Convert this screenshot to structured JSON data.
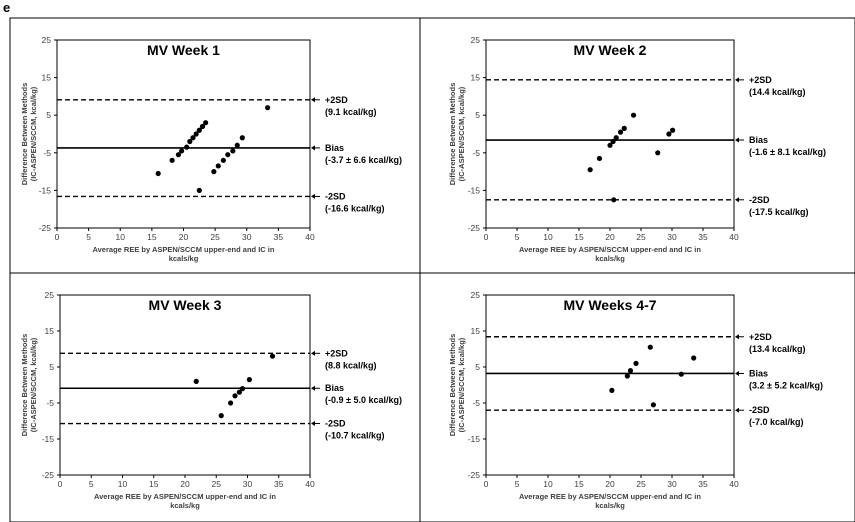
{
  "figure": {
    "panel_letter": "e"
  },
  "chart_data": [
    {
      "type": "scatter",
      "title": "MV Week 1",
      "xlabel": "Average REE by ASPEN/SCCM upper-end and IC in",
      "xlabel2": "kcals/kg",
      "ylabel": "Difference Between Methods",
      "ylabel2": "(IC-ASPEN/SCCM, kcal/kg)",
      "xlim": [
        0,
        40
      ],
      "ylim": [
        -25,
        25
      ],
      "xticks": [
        "0",
        "5",
        "10",
        "15",
        "20",
        "25",
        "30",
        "35",
        "40"
      ],
      "yticks": [
        "25",
        "15",
        "5",
        "-5",
        "-15",
        "-25"
      ],
      "points": [
        [
          16,
          -10.5
        ],
        [
          18.2,
          -7
        ],
        [
          19.2,
          -5.5
        ],
        [
          19.7,
          -4.5
        ],
        [
          20.5,
          -3.5
        ],
        [
          21,
          -2
        ],
        [
          21.5,
          -1
        ],
        [
          22,
          0
        ],
        [
          22.5,
          1
        ],
        [
          23,
          2
        ],
        [
          23.5,
          3
        ],
        [
          22.5,
          -15
        ],
        [
          24.8,
          -10
        ],
        [
          25.5,
          -8.5
        ],
        [
          26.3,
          -7
        ],
        [
          27,
          -5.5
        ],
        [
          27.8,
          -4.5
        ],
        [
          28.5,
          -3
        ],
        [
          29.3,
          -1
        ],
        [
          33.3,
          7
        ]
      ],
      "lines": [
        {
          "kind": "sd",
          "value": 9.1,
          "label": "+2SD",
          "detail": "(9.1 kcal/kg)"
        },
        {
          "kind": "bias",
          "value": -3.7,
          "label": "Bias",
          "detail": "(-3.7 ± 6.6 kcal/kg)"
        },
        {
          "kind": "sd",
          "value": -16.6,
          "label": "-2SD",
          "detail": "(-16.6 kcal/kg)"
        }
      ]
    },
    {
      "type": "scatter",
      "title": "MV Week 2",
      "xlabel": "Average REE by ASPEN/SCCM upper-end and IC in",
      "xlabel2": "kcals/kg",
      "ylabel": "Difference Between Methods",
      "ylabel2": "(IC-ASPEN/SCCM, kcal/kg)",
      "xlim": [
        0,
        40
      ],
      "ylim": [
        -25,
        25
      ],
      "xticks": [
        "0",
        "5",
        "10",
        "15",
        "20",
        "25",
        "30",
        "35",
        "40"
      ],
      "yticks": [
        "25",
        "15",
        "5",
        "-5",
        "-15",
        "-25"
      ],
      "points": [
        [
          16.8,
          -9.5
        ],
        [
          18.3,
          -6.5
        ],
        [
          20,
          -3
        ],
        [
          20.5,
          -2
        ],
        [
          21,
          -1
        ],
        [
          21.7,
          0.5
        ],
        [
          22.3,
          1.5
        ],
        [
          23.8,
          5
        ],
        [
          27.7,
          -5
        ],
        [
          29.5,
          0
        ],
        [
          30.1,
          1
        ],
        [
          20.6,
          -17.5
        ]
      ],
      "lines": [
        {
          "kind": "sd",
          "value": 14.4,
          "label": "+2SD",
          "detail": "(14.4 kcal/kg)"
        },
        {
          "kind": "bias",
          "value": -1.6,
          "label": "Bias",
          "detail": "(-1.6 ± 8.1 kcal/kg)"
        },
        {
          "kind": "sd",
          "value": -17.5,
          "label": "-2SD",
          "detail": "(-17.5 kcal/kg)"
        }
      ]
    },
    {
      "type": "scatter",
      "title": "MV Week 3",
      "xlabel": "Average REE by ASPEN/SCCM upper-end and IC in",
      "xlabel2": "kcals/kg",
      "ylabel": "Difference Between Methods",
      "ylabel2": "(IC-ASPEN/SCCM, kcal/kg)",
      "xlim": [
        0,
        40
      ],
      "ylim": [
        -25,
        25
      ],
      "xticks": [
        "0",
        "5",
        "10",
        "15",
        "20",
        "25",
        "30",
        "35",
        "40"
      ],
      "yticks": [
        "25",
        "15",
        "5",
        "-5",
        "-15",
        "-25"
      ],
      "points": [
        [
          21.8,
          1
        ],
        [
          25.8,
          -8.5
        ],
        [
          27.3,
          -5
        ],
        [
          28,
          -3
        ],
        [
          28.7,
          -2
        ],
        [
          29.2,
          -1
        ],
        [
          30.3,
          1.5
        ],
        [
          34,
          8
        ]
      ],
      "lines": [
        {
          "kind": "sd",
          "value": 8.8,
          "label": "+2SD",
          "detail": "(8.8 kcal/kg)"
        },
        {
          "kind": "bias",
          "value": -0.9,
          "label": "Bias",
          "detail": "(-0.9 ± 5.0 kcal/kg)"
        },
        {
          "kind": "sd",
          "value": -10.7,
          "label": "-2SD",
          "detail": "(-10.7 kcal/kg)"
        }
      ]
    },
    {
      "type": "scatter",
      "title": "MV Weeks 4-7",
      "xlabel": "Average REE by ASPEN/SCCM upper-end and IC in",
      "xlabel2": "kcals/kg",
      "ylabel": "Difference Between Methods",
      "ylabel2": "(IC-ASPEN/SCCM, kcal/kg)",
      "xlim": [
        0,
        40
      ],
      "ylim": [
        -25,
        25
      ],
      "xticks": [
        "0",
        "5",
        "10",
        "15",
        "20",
        "25",
        "30",
        "35",
        "40"
      ],
      "yticks": [
        "25",
        "15",
        "5",
        "-5",
        "-15",
        "-25"
      ],
      "points": [
        [
          20.3,
          -1.5
        ],
        [
          22.8,
          2.5
        ],
        [
          23.3,
          4
        ],
        [
          24.2,
          6
        ],
        [
          26.5,
          10.5
        ],
        [
          27,
          -5.5
        ],
        [
          31.5,
          3
        ],
        [
          33.5,
          7.5
        ]
      ],
      "lines": [
        {
          "kind": "sd",
          "value": 13.4,
          "label": "+2SD",
          "detail": "(13.4 kcal/kg)"
        },
        {
          "kind": "bias",
          "value": 3.2,
          "label": "Bias",
          "detail": "(3.2 ± 5.2 kcal/kg)"
        },
        {
          "kind": "sd",
          "value": -7.0,
          "label": "-2SD",
          "detail": "(-7.0 kcal/kg)"
        }
      ]
    }
  ]
}
